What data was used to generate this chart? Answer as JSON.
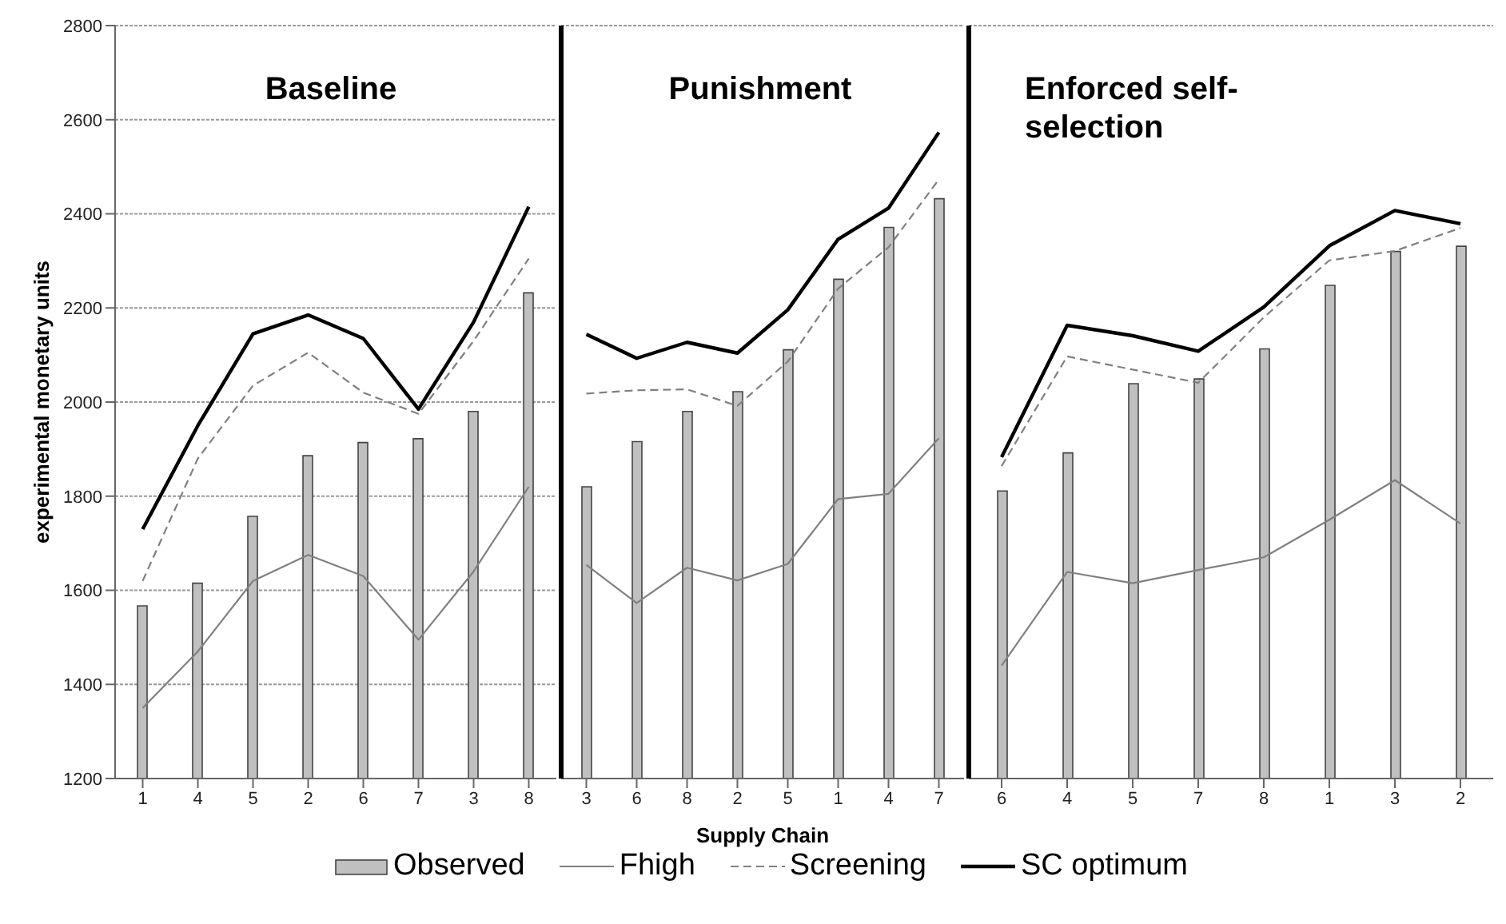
{
  "chart_data": [
    {
      "type": "bar",
      "title": "Baseline",
      "ylabel": "experimental monetary units",
      "categories": [
        "1",
        "4",
        "5",
        "2",
        "6",
        "7",
        "3",
        "8"
      ],
      "ylim": [
        1200,
        2800
      ],
      "yticks": [
        1200,
        1400,
        1600,
        1800,
        2000,
        2200,
        2400,
        2600,
        2800
      ],
      "grid": "y",
      "marker": "none",
      "series": [
        {
          "color": "#c0c0c0",
          "values": [
            1567,
            1615,
            1757,
            1886,
            1914,
            1922,
            1980,
            2232
          ]
        },
        {
          "type": "line",
          "color": "#808080",
          "line_style": "solid",
          "values": [
            1350,
            1470,
            1620,
            1675,
            1630,
            1495,
            1640,
            1820
          ]
        },
        {
          "type": "line",
          "color": "#808080",
          "line_style": "dashed",
          "values": [
            1620,
            1880,
            2035,
            2105,
            2020,
            1975,
            2130,
            2305
          ]
        },
        {
          "type": "line",
          "color": "#000000",
          "line_style": "solid",
          "values": [
            1730,
            1950,
            2145,
            2185,
            2135,
            1985,
            2170,
            2415
          ]
        }
      ]
    },
    {
      "type": "bar",
      "title": "Punishment",
      "xlabel": "Supply Chain",
      "categories": [
        "3",
        "6",
        "8",
        "2",
        "5",
        "1",
        "4",
        "7"
      ],
      "ylim": [
        1200,
        2800
      ],
      "yticks": [
        1200,
        1400,
        1600,
        1800,
        2000,
        2200,
        2400,
        2600,
        2800
      ],
      "grid": "y",
      "marker": "none",
      "tick_labels": "x",
      "legend": "bottom",
      "series": [
        {
          "name": "Observed",
          "color": "#c0c0c0",
          "values": [
            1820,
            1916,
            1980,
            2022,
            2111,
            2261,
            2371,
            2432
          ]
        },
        {
          "type": "line",
          "name": "Fhigh",
          "color": "#808080",
          "line_style": "solid",
          "values": [
            1654,
            1573,
            1648,
            1621,
            1656,
            1794,
            1805,
            1923
          ]
        },
        {
          "type": "line",
          "name": "Screening",
          "color": "#808080",
          "line_style": "dashed",
          "values": [
            2018,
            2025,
            2027,
            1992,
            2086,
            2241,
            2329,
            2473
          ]
        },
        {
          "type": "line",
          "name": "SC optimum",
          "color": "#000000",
          "line_style": "solid",
          "values": [
            2144,
            2093,
            2127,
            2104,
            2196,
            2346,
            2412,
            2573
          ]
        }
      ]
    },
    {
      "type": "bar",
      "title": "Enforced self-selection",
      "categories": [
        "6",
        "4",
        "5",
        "7",
        "8",
        "1",
        "3",
        "2"
      ],
      "ylim": [
        1200,
        2800
      ],
      "yticks": [
        1200,
        1400,
        1600,
        1800,
        2000,
        2200,
        2400,
        2600,
        2800
      ],
      "grid": "y",
      "marker": "none",
      "tick_labels": "x",
      "series": [
        {
          "color": "#c0c0c0",
          "values": [
            1811,
            1892,
            2039,
            2049,
            2113,
            2248,
            2320,
            2331
          ]
        },
        {
          "type": "line",
          "color": "#808080",
          "line_style": "solid",
          "values": [
            1440,
            1639,
            1615,
            1643,
            1670,
            1750,
            1834,
            1742
          ]
        },
        {
          "type": "line",
          "color": "#808080",
          "line_style": "dashed",
          "values": [
            1864,
            2097,
            2069,
            2041,
            2180,
            2301,
            2321,
            2370
          ]
        },
        {
          "type": "line",
          "color": "#000000",
          "line_style": "solid",
          "values": [
            1883,
            2163,
            2141,
            2108,
            2202,
            2332,
            2407,
            2379
          ]
        }
      ]
    }
  ]
}
